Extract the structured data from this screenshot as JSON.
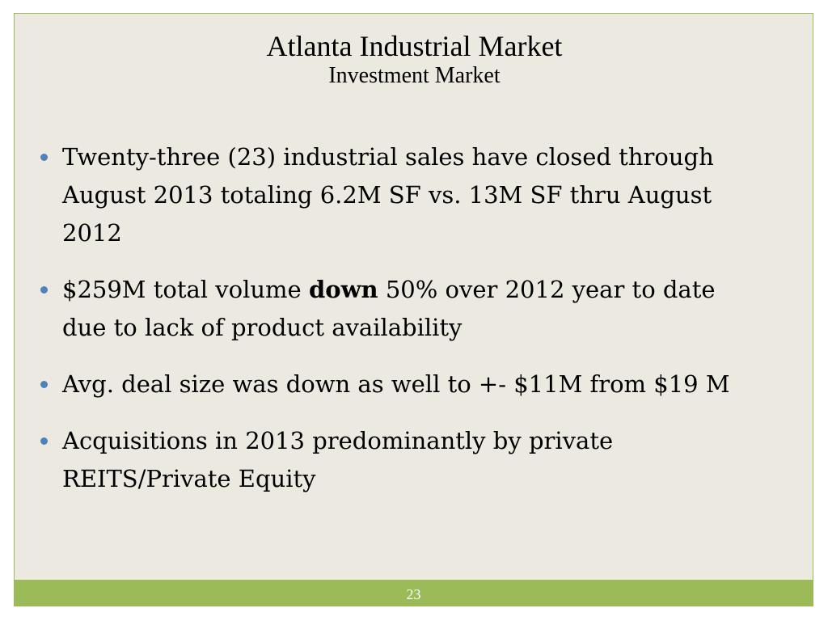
{
  "slide": {
    "title": "Atlanta Industrial Market",
    "subtitle": "Investment Market",
    "bullets": [
      {
        "text": " Twenty-three (23) industrial sales have closed through August 2013 totaling 6.2M SF vs. 13M SF thru August 2012"
      },
      {
        "before": "$259M total volume ",
        "bold": "down",
        "after": " 50% over 2012 year to date due to lack of product availability"
      },
      {
        "text": "Avg. deal size was down as well to +- $11M from $19 M"
      },
      {
        "text": "Acquisitions in 2013 predominantly by private REITS/Private Equity"
      }
    ],
    "slide_number": "23"
  },
  "colors": {
    "background": "#eceae0",
    "footer_bar": "#9bbb59",
    "bullet": "#4f81bd",
    "slide_number_text": "#ffffff"
  }
}
